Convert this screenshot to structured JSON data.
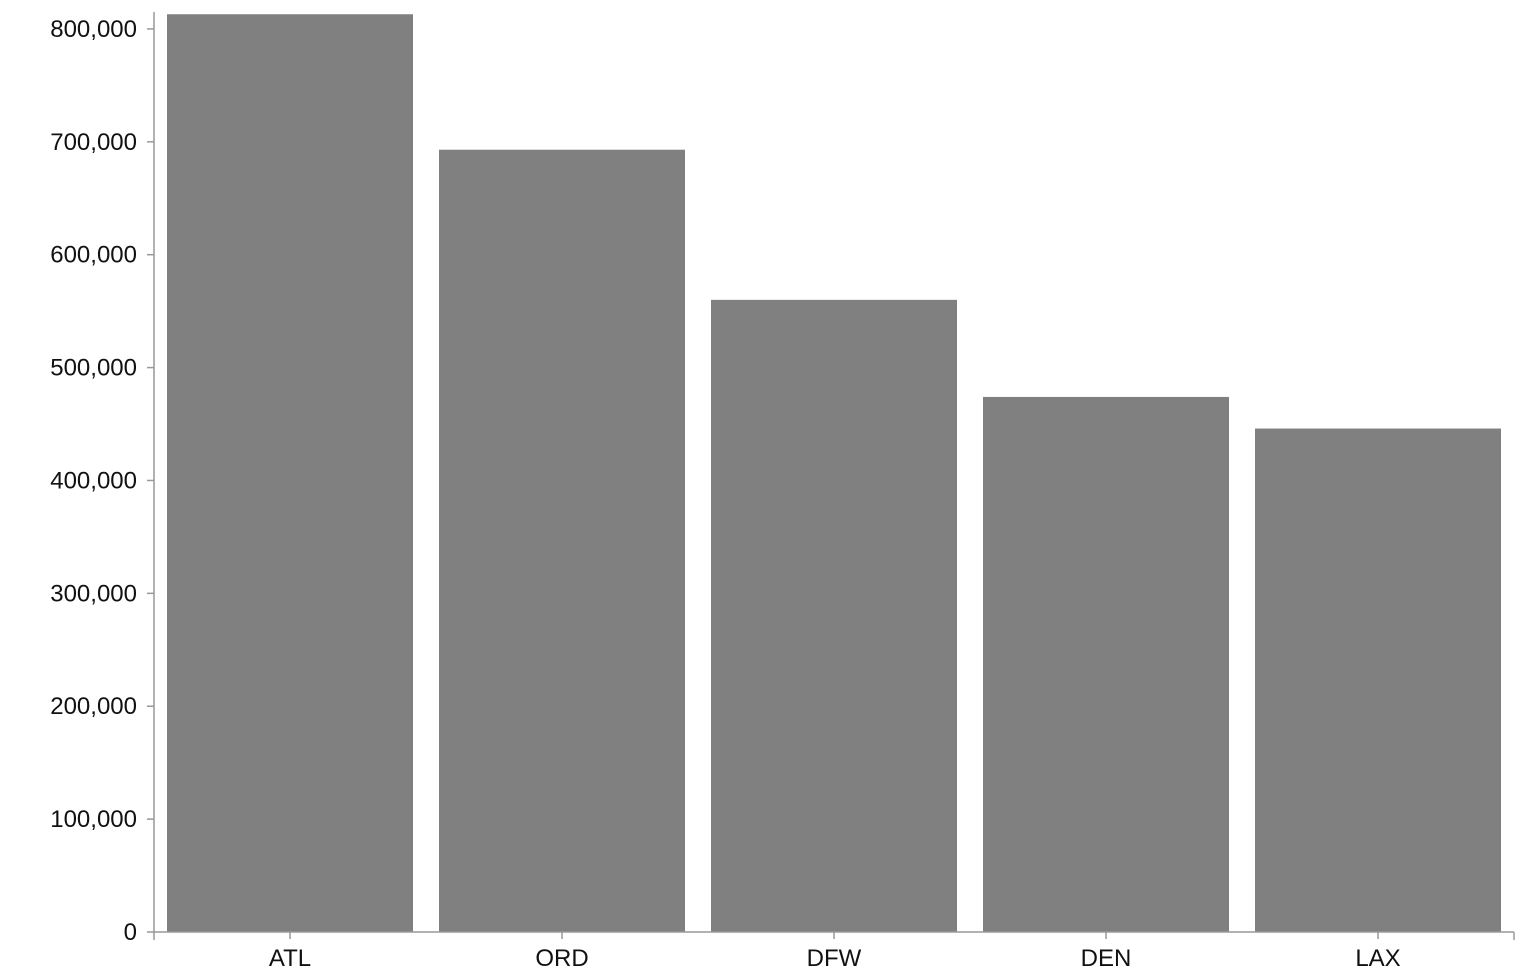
{
  "chart_data": {
    "type": "bar",
    "categories": [
      "ATL",
      "ORD",
      "DFW",
      "DEN",
      "LAX"
    ],
    "values": [
      813000,
      693000,
      560000,
      474000,
      446000
    ],
    "yticks": [
      0,
      100000,
      200000,
      300000,
      400000,
      500000,
      600000,
      700000,
      800000
    ],
    "ytick_labels": [
      "0",
      "100,000",
      "200,000",
      "300,000",
      "400,000",
      "500,000",
      "600,000",
      "700,000",
      "800,000"
    ],
    "ylim": [
      0,
      815000
    ],
    "grid": false,
    "legend": "none",
    "bar_color": "#808080",
    "axis_color": "#999999"
  }
}
